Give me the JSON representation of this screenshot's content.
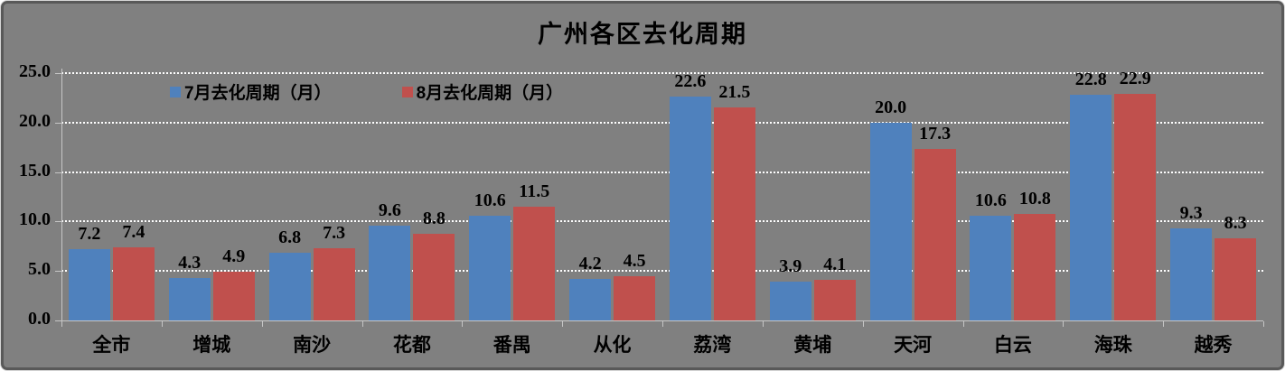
{
  "chart_data": {
    "type": "bar",
    "title": "广州各区去化周期",
    "categories": [
      "全市",
      "增城",
      "南沙",
      "花都",
      "番禺",
      "从化",
      "荔湾",
      "黄埔",
      "天河",
      "白云",
      "海珠",
      "越秀"
    ],
    "series": [
      {
        "name": "7月去化周期（月）",
        "color": "#4F81BD",
        "values": [
          7.2,
          4.3,
          6.8,
          9.6,
          10.6,
          4.2,
          22.6,
          3.9,
          20.0,
          10.6,
          22.8,
          9.3
        ]
      },
      {
        "name": "8月去化周期（月）",
        "color": "#C0504D",
        "values": [
          7.4,
          4.9,
          7.3,
          8.8,
          11.5,
          4.5,
          21.5,
          4.1,
          17.3,
          10.8,
          22.9,
          8.3
        ]
      }
    ],
    "ylim": [
      0,
      25
    ],
    "y_ticks": [
      0,
      5,
      10,
      15,
      20,
      25
    ],
    "y_tick_labels": [
      "0.0",
      "5.0",
      "10.0",
      "15.0",
      "20.0",
      "25.0"
    ],
    "value_labels": true,
    "grid": "horizontal-dotted",
    "legend_position": "top-left-inside",
    "colors": {
      "background": "#808080",
      "gridline": "#FFFFFF",
      "axis_line": "#C6C6C6",
      "text": "#000000",
      "frame_border": "#595959"
    }
  }
}
